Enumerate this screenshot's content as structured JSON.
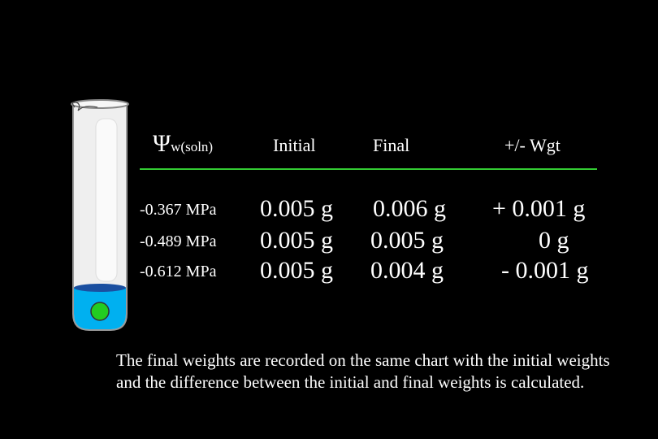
{
  "table": {
    "headers": {
      "psi_symbol": "Ψ",
      "psi_subscript": "w(soln)",
      "initial": "Initial",
      "final": "Final",
      "diff": "+/- Wgt"
    },
    "rows": [
      {
        "psi": "-0.367 MPa",
        "initial": "0.005 g",
        "final": "0.006 g",
        "diff": "+ 0.001 g"
      },
      {
        "psi": "-0.489 MPa",
        "initial": "0.005 g",
        "final": "0.005 g",
        "diff": "0 g"
      },
      {
        "psi": "-0.612 MPa",
        "initial": "0.005 g",
        "final": "0.004 g",
        "diff": "- 0.001 g"
      }
    ]
  },
  "caption": "The final weights are recorded on the same chart with the initial weights and the difference between the initial and final weights is calculated.",
  "colors": {
    "background": "#000000",
    "rule": "#33cc33",
    "solution": "#00b0f0",
    "potato": "#22cc22"
  }
}
